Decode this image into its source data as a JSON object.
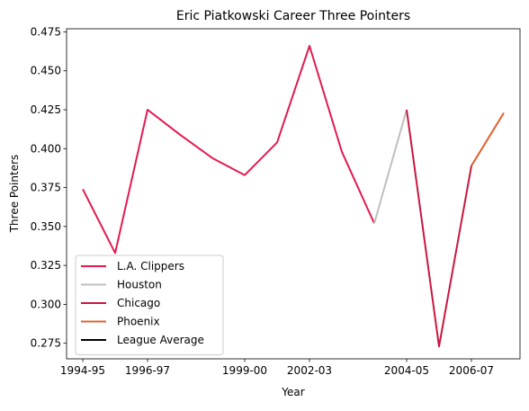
{
  "chart_data": {
    "type": "line",
    "title": "Eric Piatkowski Career Three Pointers",
    "xlabel": "Year",
    "ylabel": "Three Pointers",
    "x_tick_labels": [
      "1994-95",
      "1996-97",
      "1999-00",
      "2002-03",
      "2004-05",
      "2006-07"
    ],
    "x_tick_positions": [
      0,
      2,
      5,
      7,
      10,
      12
    ],
    "y_ticks": [
      0.275,
      0.3,
      0.325,
      0.35,
      0.375,
      0.4,
      0.425,
      0.45,
      0.475
    ],
    "y_tick_labels": [
      "0.275",
      "0.300",
      "0.325",
      "0.350",
      "0.375",
      "0.400",
      "0.425",
      "0.450",
      "0.475"
    ],
    "xlim": [
      -0.5,
      13.5
    ],
    "ylim": [
      0.265,
      0.477
    ],
    "grid": false,
    "legend_position": "lower-left",
    "series": [
      {
        "name": "L.A. Clippers",
        "color": "#e31a4f",
        "points": [
          [
            0,
            0.374
          ],
          [
            1,
            0.333
          ],
          [
            2,
            0.425
          ],
          [
            3,
            0.409
          ],
          [
            4,
            0.394
          ],
          [
            5,
            0.383
          ],
          [
            6,
            0.404
          ],
          [
            7,
            0.466
          ],
          [
            8,
            0.398
          ],
          [
            9,
            0.352
          ]
        ]
      },
      {
        "name": "Houston",
        "color": "#bfbfbf",
        "points": [
          [
            9,
            0.352
          ],
          [
            10,
            0.425
          ]
        ]
      },
      {
        "name": "Chicago",
        "color": "#c9173f",
        "points": [
          [
            10,
            0.425
          ],
          [
            11,
            0.273
          ],
          [
            12,
            0.389
          ]
        ]
      },
      {
        "name": "Phoenix",
        "color": "#e06030",
        "points": [
          [
            12,
            0.389
          ],
          [
            13,
            0.423
          ]
        ]
      },
      {
        "name": "League Average",
        "color": "#000000",
        "points": []
      }
    ]
  }
}
